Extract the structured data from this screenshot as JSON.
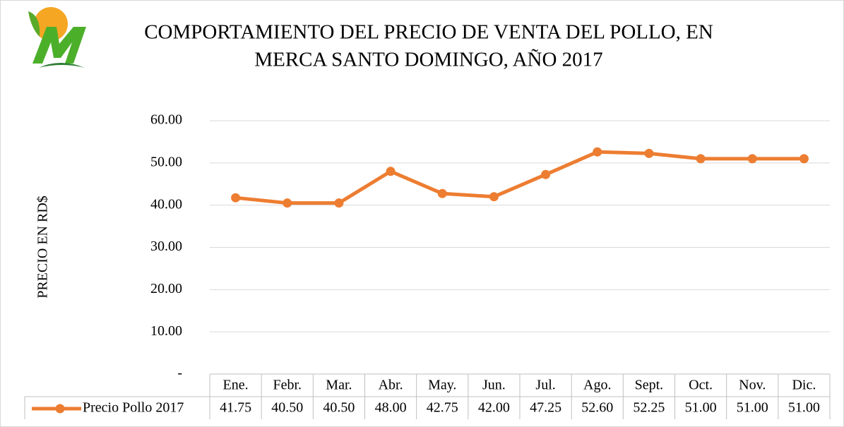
{
  "chart_data": {
    "type": "line",
    "title": [
      "COMPORTAMIENTO DEL PRECIO DE VENTA  DEL POLLO, EN",
      "MERCA SANTO DOMINGO, AÑO 2017"
    ],
    "y_label": "PRECIO EN RD$",
    "categories": [
      "Ene.",
      "Febr.",
      "Mar.",
      "Abr.",
      "May.",
      "Jun.",
      "Jul.",
      "Ago.",
      "Sept.",
      "Oct.",
      "Nov.",
      "Dic."
    ],
    "series": [
      {
        "name": "Precio Pollo 2017",
        "color": "#ED7D31",
        "values": [
          41.75,
          40.5,
          40.5,
          48,
          42.75,
          42,
          47.25,
          52.6,
          52.25,
          51,
          51,
          51
        ],
        "value_labels": [
          "41.75",
          "40.50",
          "40.50",
          "48.00",
          "42.75",
          "42.00",
          "47.25",
          "52.60",
          "52.25",
          "51.00",
          "51.00",
          "51.00"
        ]
      }
    ],
    "ylim": [
      0,
      60
    ],
    "yticks": [
      {
        "value": 0,
        "label": "-"
      },
      {
        "value": 10,
        "label": "10.00"
      },
      {
        "value": 20,
        "label": "20.00"
      },
      {
        "value": 30,
        "label": "30.00"
      },
      {
        "value": 40,
        "label": "40.00"
      },
      {
        "value": 50,
        "label": "50.00"
      },
      {
        "value": 60,
        "label": "60.00"
      }
    ],
    "grid": true
  }
}
